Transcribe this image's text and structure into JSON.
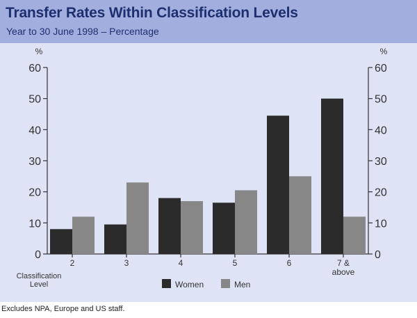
{
  "header": {
    "title": "Transfer Rates Within Classification Levels",
    "subtitle": "Year to 30 June 1998 – Percentage"
  },
  "footnote": "Excludes NPA, Europe and US staff.",
  "colors": {
    "header_bg": "#a2aedd",
    "panel_bg": "#dfe3f6",
    "title_text": "#1e2f70",
    "women": "#2b2b2b",
    "men": "#878787",
    "axis": "#333333"
  },
  "chart_data": {
    "type": "bar",
    "title": "Transfer Rates Within Classification Levels",
    "subtitle": "Year to 30 June 1998 – Percentage",
    "categories": [
      "2",
      "3",
      "4",
      "5",
      "6",
      "7 & above"
    ],
    "category_lines": [
      [
        "2"
      ],
      [
        "3"
      ],
      [
        "4"
      ],
      [
        "5"
      ],
      [
        "6"
      ],
      [
        "7 &",
        "above"
      ]
    ],
    "series": [
      {
        "name": "Women",
        "color": "#2b2b2b",
        "values": [
          8,
          9.5,
          18,
          16.5,
          44.5,
          50
        ]
      },
      {
        "name": "Men",
        "color": "#878787",
        "values": [
          12,
          23,
          17,
          20.5,
          25,
          12
        ]
      }
    ],
    "xlabel": "Classification Level",
    "xlabel_lines": [
      "Classification",
      "Level"
    ],
    "ylabel": "%",
    "ylabel_right": "%",
    "ylim": [
      0,
      60
    ],
    "yticks": [
      0,
      10,
      20,
      30,
      40,
      50,
      60
    ],
    "grid": false,
    "legend": "bottom-center"
  }
}
